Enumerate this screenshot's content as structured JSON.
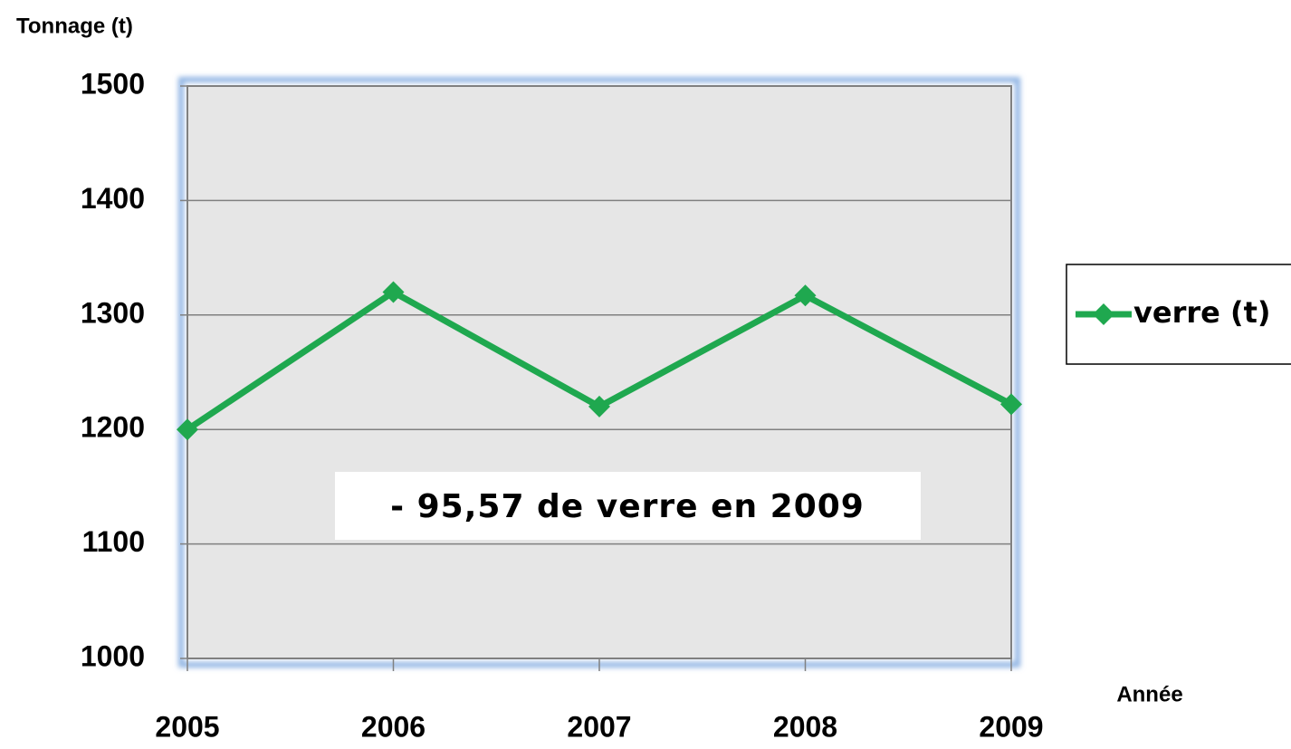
{
  "chart_data": {
    "type": "line",
    "y_axis_label": "Tonnage (t)",
    "x_axis_label": "Année",
    "annotation": "- 95,57 de verre en 2009",
    "categories": [
      "2005",
      "2006",
      "2007",
      "2008",
      "2009"
    ],
    "series": [
      {
        "name": "verre (t)",
        "color": "#1fa84f",
        "values": [
          1200,
          1320,
          1220,
          1317,
          1222
        ]
      }
    ],
    "ylim": [
      1000,
      1500
    ],
    "yticks": [
      1000,
      1100,
      1200,
      1300,
      1400,
      1500
    ],
    "grid": true,
    "legend": "right"
  }
}
